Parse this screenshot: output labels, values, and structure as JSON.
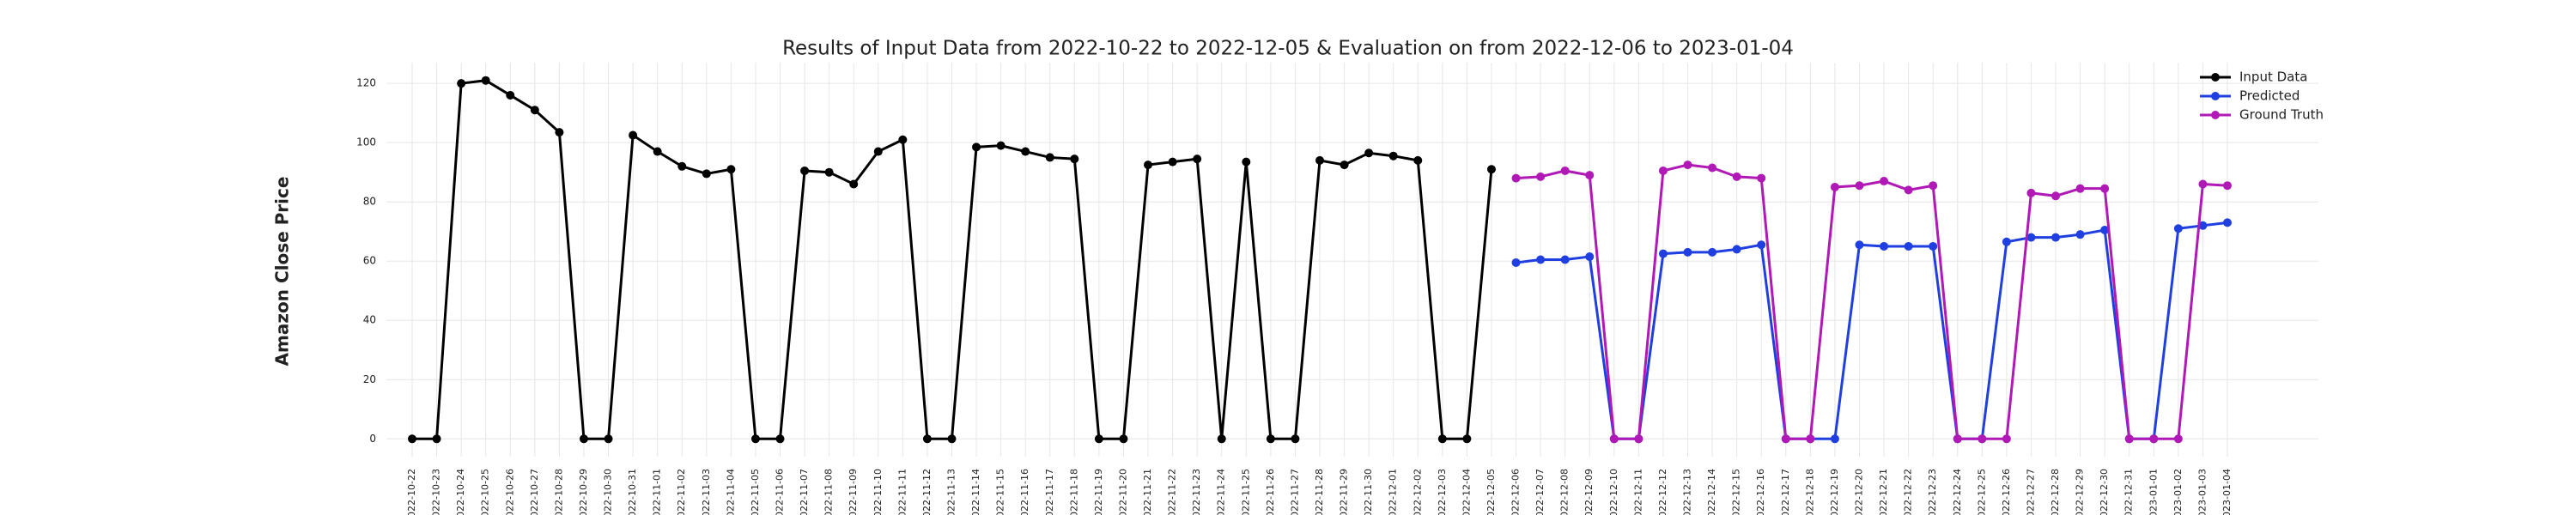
{
  "chart_data": {
    "type": "line",
    "title": "Results of Input Data from 2022-10-22 to 2022-12-05 & Evaluation on from 2022-12-06 to 2023-01-04",
    "y_label": "Amazon Close Price",
    "categories": [
      "2022-10-22",
      "2022-10-23",
      "2022-10-24",
      "2022-10-25",
      "2022-10-26",
      "2022-10-27",
      "2022-10-28",
      "2022-10-29",
      "2022-10-30",
      "2022-10-31",
      "2022-11-01",
      "2022-11-02",
      "2022-11-03",
      "2022-11-04",
      "2022-11-05",
      "2022-11-06",
      "2022-11-07",
      "2022-11-08",
      "2022-11-09",
      "2022-11-10",
      "2022-11-11",
      "2022-11-12",
      "2022-11-13",
      "2022-11-14",
      "2022-11-15",
      "2022-11-16",
      "2022-11-17",
      "2022-11-18",
      "2022-11-19",
      "2022-11-20",
      "2022-11-21",
      "2022-11-22",
      "2022-11-23",
      "2022-11-24",
      "2022-11-25",
      "2022-11-26",
      "2022-11-27",
      "2022-11-28",
      "2022-11-29",
      "2022-11-30",
      "2022-12-01",
      "2022-12-02",
      "2022-12-03",
      "2022-12-04",
      "2022-12-05",
      "2022-12-06",
      "2022-12-07",
      "2022-12-08",
      "2022-12-09",
      "2022-12-10",
      "2022-12-11",
      "2022-12-12",
      "2022-12-13",
      "2022-12-14",
      "2022-12-15",
      "2022-12-16",
      "2022-12-17",
      "2022-12-18",
      "2022-12-19",
      "2022-12-20",
      "2022-12-21",
      "2022-12-22",
      "2022-12-23",
      "2022-12-24",
      "2022-12-25",
      "2022-12-26",
      "2022-12-27",
      "2022-12-28",
      "2022-12-29",
      "2022-12-30",
      "2022-12-31",
      "2023-01-01",
      "2023-01-02",
      "2023-01-03",
      "2023-01-04"
    ],
    "series": [
      {
        "name": "Input Data",
        "color": "#000000",
        "values": [
          0,
          0,
          120,
          121,
          116,
          111,
          103.5,
          0,
          0,
          102.5,
          97,
          92,
          89.5,
          91,
          0,
          0,
          90.5,
          90,
          86,
          97,
          101,
          0,
          0,
          98.5,
          99,
          97,
          95,
          94.5,
          0,
          0,
          92.5,
          93.5,
          94.5,
          0,
          93.5,
          0,
          0,
          94,
          92.5,
          96.5,
          95.5,
          94,
          0,
          0,
          91,
          null,
          null,
          null,
          null,
          null,
          null,
          null,
          null,
          null,
          null,
          null,
          null,
          null,
          null,
          null,
          null,
          null,
          null,
          null,
          null,
          null,
          null,
          null,
          null,
          null,
          null,
          null,
          null,
          null,
          null
        ]
      },
      {
        "name": "Predicted",
        "color": "#1f3fe0",
        "values": [
          null,
          null,
          null,
          null,
          null,
          null,
          null,
          null,
          null,
          null,
          null,
          null,
          null,
          null,
          null,
          null,
          null,
          null,
          null,
          null,
          null,
          null,
          null,
          null,
          null,
          null,
          null,
          null,
          null,
          null,
          null,
          null,
          null,
          null,
          null,
          null,
          null,
          null,
          null,
          null,
          null,
          null,
          null,
          null,
          null,
          59.5,
          60.5,
          60.5,
          61.5,
          0,
          0,
          62.5,
          63,
          63,
          64,
          65.5,
          0,
          0,
          0,
          65.5,
          65,
          65,
          65,
          0,
          0,
          66.5,
          68,
          68,
          69,
          70.5,
          0,
          0,
          71,
          72,
          73
        ]
      },
      {
        "name": "Ground Truth",
        "color": "#b019b5",
        "values": [
          null,
          null,
          null,
          null,
          null,
          null,
          null,
          null,
          null,
          null,
          null,
          null,
          null,
          null,
          null,
          null,
          null,
          null,
          null,
          null,
          null,
          null,
          null,
          null,
          null,
          null,
          null,
          null,
          null,
          null,
          null,
          null,
          null,
          null,
          null,
          null,
          null,
          null,
          null,
          null,
          null,
          null,
          null,
          null,
          null,
          88,
          88.5,
          90.5,
          89,
          0,
          0,
          90.5,
          92.5,
          91.5,
          88.5,
          88,
          0,
          0,
          85,
          85.5,
          87,
          84,
          85.5,
          0,
          0,
          0,
          83,
          82,
          84.5,
          84.5,
          0,
          0,
          0,
          86,
          85.5
        ]
      }
    ],
    "ylim": [
      -6,
      127
    ],
    "yticks": [
      0,
      20,
      40,
      60,
      80,
      100,
      120
    ],
    "grid": true,
    "legend": "upper right"
  }
}
